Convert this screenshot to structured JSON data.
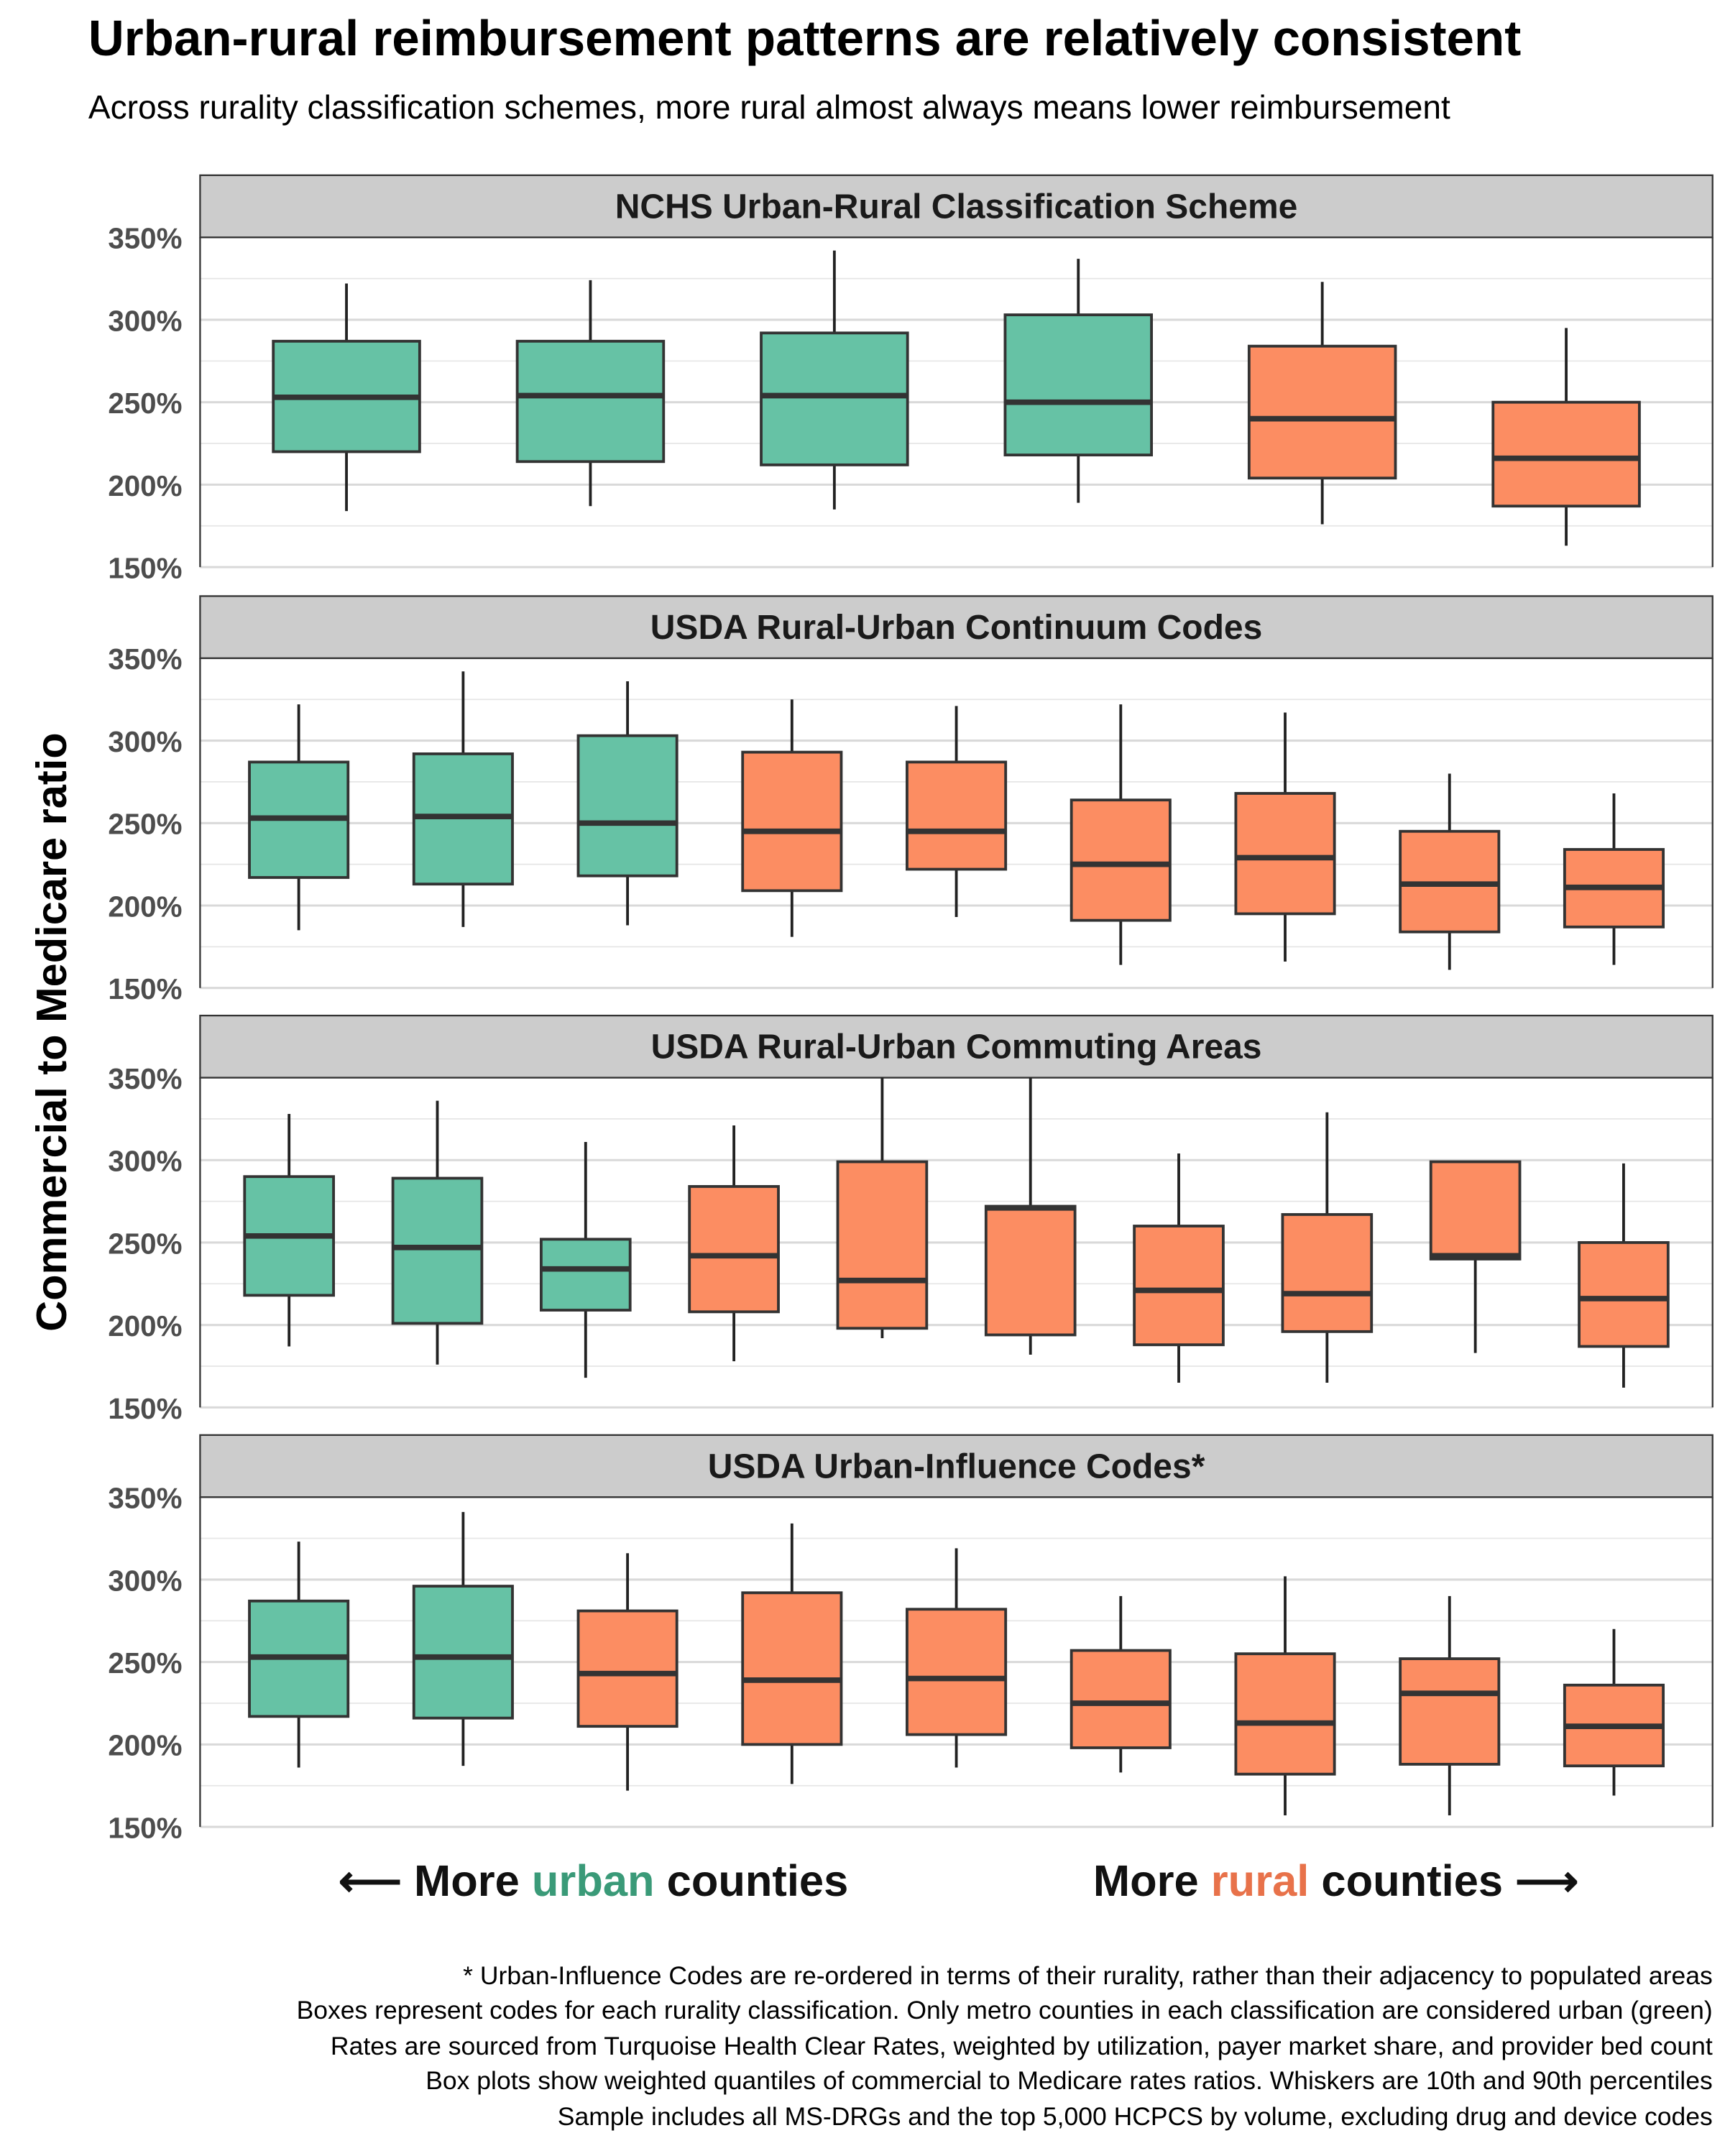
{
  "title": "Urban-rural reimbursement patterns are relatively consistent",
  "subtitle": "Across rurality classification schemes, more rural almost always means lower reimbursement",
  "colors": {
    "urban": "#66c2a5",
    "rural": "#fc8d62",
    "urban_text": "#3a9a78",
    "rural_text": "#e8724a"
  },
  "direction": {
    "left_arrow": "⟵ More ",
    "urban_word": "urban",
    "left_suffix": " counties",
    "right_prefix": "More ",
    "rural_word": "rural",
    "right_suffix": " counties ⟶"
  },
  "footnotes": [
    "* Urban-Influence Codes are re-ordered in terms of their rurality, rather than their adjacency to populated areas",
    "Boxes represent codes for each rurality classification. Only metro counties in each classification are considered urban (green)",
    "Rates are sourced from Turquoise Health Clear Rates, weighted by utilization, payer market share, and provider bed count",
    "Box plots show weighted quantiles of commercial to Medicare rates ratios. Whiskers are 10th and 90th percentiles",
    "Sample includes all MS-DRGs and the top 5,000 HCPCS by volume, excluding drug and device codes"
  ],
  "chart_data": {
    "type": "box",
    "ylabel": "Commercial to Medicare ratio",
    "ylim": [
      150,
      350
    ],
    "yticks": [
      "150%",
      "200%",
      "250%",
      "300%",
      "350%"
    ],
    "ytick_values": [
      150,
      200,
      250,
      300,
      350
    ],
    "grid": true,
    "panels": [
      {
        "title": "NCHS Urban-Rural Classification Scheme",
        "boxes": [
          {
            "group": "urban",
            "p10": 184,
            "q1": 220,
            "median": 253,
            "q3": 287,
            "p90": 322
          },
          {
            "group": "urban",
            "p10": 187,
            "q1": 214,
            "median": 254,
            "q3": 287,
            "p90": 324
          },
          {
            "group": "urban",
            "p10": 185,
            "q1": 212,
            "median": 254,
            "q3": 292,
            "p90": 342
          },
          {
            "group": "urban",
            "p10": 189,
            "q1": 218,
            "median": 250,
            "q3": 303,
            "p90": 337
          },
          {
            "group": "rural",
            "p10": 176,
            "q1": 204,
            "median": 240,
            "q3": 284,
            "p90": 323
          },
          {
            "group": "rural",
            "p10": 163,
            "q1": 187,
            "median": 216,
            "q3": 250,
            "p90": 295
          }
        ]
      },
      {
        "title": "USDA Rural-Urban Continuum Codes",
        "boxes": [
          {
            "group": "urban",
            "p10": 185,
            "q1": 217,
            "median": 253,
            "q3": 287,
            "p90": 322
          },
          {
            "group": "urban",
            "p10": 187,
            "q1": 213,
            "median": 254,
            "q3": 292,
            "p90": 342
          },
          {
            "group": "urban",
            "p10": 188,
            "q1": 218,
            "median": 250,
            "q3": 303,
            "p90": 336
          },
          {
            "group": "rural",
            "p10": 181,
            "q1": 209,
            "median": 245,
            "q3": 293,
            "p90": 325
          },
          {
            "group": "rural",
            "p10": 193,
            "q1": 222,
            "median": 245,
            "q3": 287,
            "p90": 321
          },
          {
            "group": "rural",
            "p10": 164,
            "q1": 191,
            "median": 225,
            "q3": 264,
            "p90": 322
          },
          {
            "group": "rural",
            "p10": 166,
            "q1": 195,
            "median": 229,
            "q3": 268,
            "p90": 317
          },
          {
            "group": "rural",
            "p10": 161,
            "q1": 184,
            "median": 213,
            "q3": 245,
            "p90": 280
          },
          {
            "group": "rural",
            "p10": 164,
            "q1": 187,
            "median": 211,
            "q3": 234,
            "p90": 268
          }
        ]
      },
      {
        "title": "USDA Rural-Urban Commuting Areas",
        "boxes": [
          {
            "group": "urban",
            "p10": 187,
            "q1": 218,
            "median": 254,
            "q3": 290,
            "p90": 328
          },
          {
            "group": "urban",
            "p10": 176,
            "q1": 201,
            "median": 247,
            "q3": 289,
            "p90": 336
          },
          {
            "group": "urban",
            "p10": 168,
            "q1": 209,
            "median": 234,
            "q3": 252,
            "p90": 311
          },
          {
            "group": "rural",
            "p10": 178,
            "q1": 208,
            "median": 242,
            "q3": 284,
            "p90": 321
          },
          {
            "group": "rural",
            "p10": 192,
            "q1": 198,
            "median": 227,
            "q3": 299,
            "p90": 350
          },
          {
            "group": "rural",
            "p10": 182,
            "q1": 194,
            "median": 271,
            "q3": 272,
            "p90": 350
          },
          {
            "group": "rural",
            "p10": 165,
            "q1": 188,
            "median": 221,
            "q3": 260,
            "p90": 304
          },
          {
            "group": "rural",
            "p10": 165,
            "q1": 196,
            "median": 219,
            "q3": 267,
            "p90": 329
          },
          {
            "group": "rural",
            "p10": 183,
            "q1": 240,
            "median": 242,
            "q3": 299,
            "p90": 299
          },
          {
            "group": "rural",
            "p10": 162,
            "q1": 187,
            "median": 216,
            "q3": 250,
            "p90": 298
          }
        ]
      },
      {
        "title": "USDA Urban-Influence Codes*",
        "boxes": [
          {
            "group": "urban",
            "p10": 186,
            "q1": 217,
            "median": 253,
            "q3": 287,
            "p90": 323
          },
          {
            "group": "urban",
            "p10": 187,
            "q1": 216,
            "median": 253,
            "q3": 296,
            "p90": 341
          },
          {
            "group": "rural",
            "p10": 172,
            "q1": 211,
            "median": 243,
            "q3": 281,
            "p90": 316
          },
          {
            "group": "rural",
            "p10": 176,
            "q1": 200,
            "median": 239,
            "q3": 292,
            "p90": 334
          },
          {
            "group": "rural",
            "p10": 186,
            "q1": 206,
            "median": 240,
            "q3": 282,
            "p90": 319
          },
          {
            "group": "rural",
            "p10": 183,
            "q1": 198,
            "median": 225,
            "q3": 257,
            "p90": 290
          },
          {
            "group": "rural",
            "p10": 157,
            "q1": 182,
            "median": 213,
            "q3": 255,
            "p90": 302
          },
          {
            "group": "rural",
            "p10": 157,
            "q1": 188,
            "median": 231,
            "q3": 252,
            "p90": 290
          },
          {
            "group": "rural",
            "p10": 169,
            "q1": 187,
            "median": 211,
            "q3": 236,
            "p90": 270
          }
        ]
      }
    ]
  }
}
